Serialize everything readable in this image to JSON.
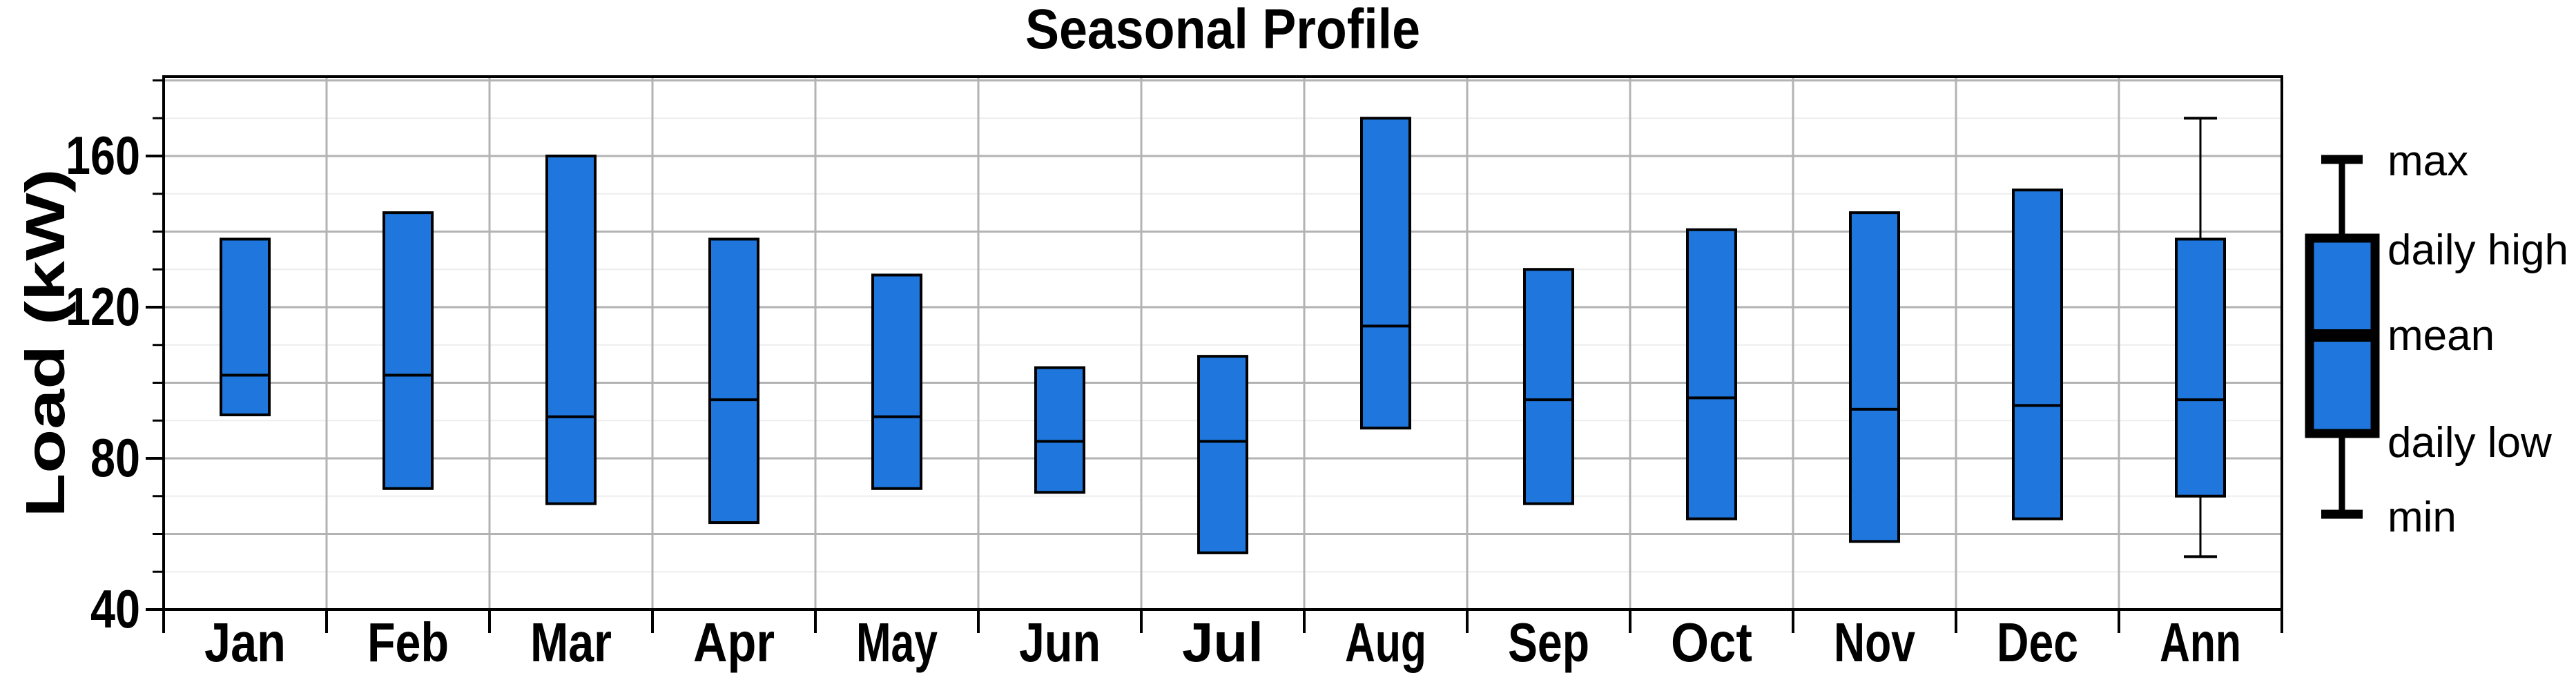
{
  "title": "Seasonal Profile",
  "y_axis": {
    "label": "Load (kW)",
    "tick_labels": [
      "40",
      "80",
      "120",
      "160"
    ]
  },
  "x_axis": {
    "labels": [
      "Jan",
      "Feb",
      "Mar",
      "Apr",
      "May",
      "Jun",
      "Jul",
      "Aug",
      "Sep",
      "Oct",
      "Nov",
      "Dec",
      "Ann"
    ]
  },
  "legend": {
    "items": [
      "max",
      "daily high",
      "mean",
      "daily low",
      "min"
    ]
  },
  "colors": {
    "box_fill": "#1F76DC",
    "box_border": "#000000",
    "grid_light": "#ededed",
    "grid_mid": "#b3b3b3",
    "frame": "#000000",
    "background": "#ffffff"
  },
  "chart_data": {
    "type": "box",
    "title": "Seasonal Profile",
    "ylabel": "Load (kW)",
    "ylim": [
      40,
      181
    ],
    "yticks": [
      40,
      80,
      120,
      160
    ],
    "grid": "on",
    "grid_step": 10,
    "legend": [
      "max",
      "daily high",
      "mean",
      "daily low",
      "min"
    ],
    "legend_position": "right",
    "categories": [
      "Jan",
      "Feb",
      "Mar",
      "Apr",
      "May",
      "Jun",
      "Jul",
      "Aug",
      "Sep",
      "Oct",
      "Nov",
      "Dec",
      "Ann"
    ],
    "boxes": [
      {
        "label": "Jan",
        "daily_high": 138,
        "mean": 102,
        "daily_low": 91.5
      },
      {
        "label": "Feb",
        "daily_high": 145,
        "mean": 102,
        "daily_low": 72
      },
      {
        "label": "Mar",
        "daily_high": 160,
        "mean": 91,
        "daily_low": 68
      },
      {
        "label": "Apr",
        "daily_high": 138,
        "mean": 95.5,
        "daily_low": 63
      },
      {
        "label": "May",
        "daily_high": 128.5,
        "mean": 91,
        "daily_low": 72
      },
      {
        "label": "Jun",
        "daily_high": 104,
        "mean": 84.5,
        "daily_low": 71
      },
      {
        "label": "Jul",
        "daily_high": 107,
        "mean": 84.5,
        "daily_low": 55
      },
      {
        "label": "Aug",
        "daily_high": 170,
        "mean": 115,
        "daily_low": 88
      },
      {
        "label": "Sep",
        "daily_high": 130,
        "mean": 95.5,
        "daily_low": 68
      },
      {
        "label": "Oct",
        "daily_high": 140.5,
        "mean": 96,
        "daily_low": 64
      },
      {
        "label": "Nov",
        "daily_high": 145,
        "mean": 93,
        "daily_low": 58
      },
      {
        "label": "Dec",
        "daily_high": 151,
        "mean": 94,
        "daily_low": 64
      },
      {
        "label": "Ann",
        "daily_high": 138,
        "mean": 95.5,
        "daily_low": 70,
        "max": 170,
        "min": 54
      }
    ]
  }
}
